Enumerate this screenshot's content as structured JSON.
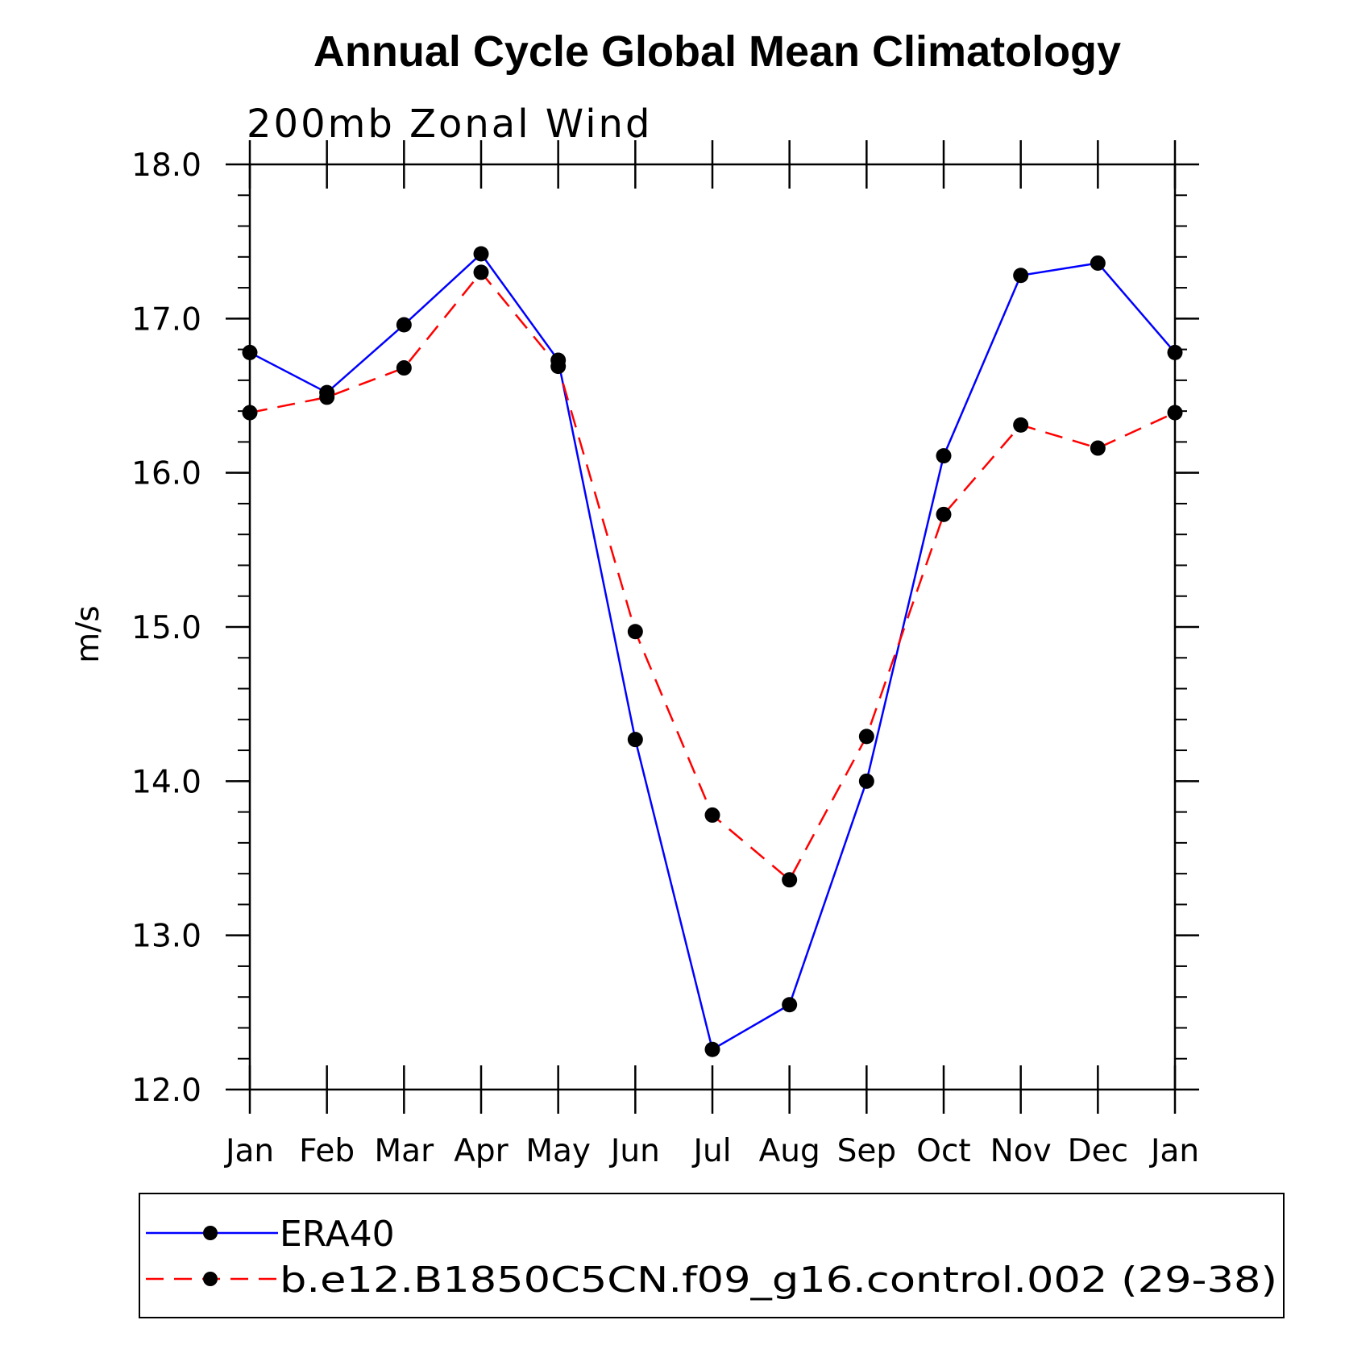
{
  "chart_data": {
    "type": "line",
    "title": "Annual Cycle Global Mean Climatology",
    "subtitle": "200mb Zonal Wind",
    "xlabel": "",
    "ylabel": "m/s",
    "categories": [
      "Jan",
      "Feb",
      "Mar",
      "Apr",
      "May",
      "Jun",
      "Jul",
      "Aug",
      "Sep",
      "Oct",
      "Nov",
      "Dec",
      "Jan"
    ],
    "ylim": [
      12.0,
      18.0
    ],
    "yticks": [
      "12.0",
      "13.0",
      "14.0",
      "15.0",
      "16.0",
      "17.0",
      "18.0"
    ],
    "grid": false,
    "legend_position": "bottom",
    "series": [
      {
        "name": "ERA40",
        "color": "#0000ff",
        "dash": "solid",
        "values": [
          16.78,
          16.52,
          16.96,
          17.42,
          16.73,
          14.27,
          12.26,
          12.55,
          14.0,
          16.11,
          17.28,
          17.36,
          16.78
        ]
      },
      {
        "name": "b.e12.B1850C5CN.f09_g16.control.002 (29-38)",
        "color": "#ff0000",
        "dash": "dashed",
        "values": [
          16.39,
          16.49,
          16.68,
          17.3,
          16.69,
          14.97,
          13.78,
          13.36,
          14.29,
          15.73,
          16.31,
          16.16,
          16.39
        ]
      }
    ]
  }
}
